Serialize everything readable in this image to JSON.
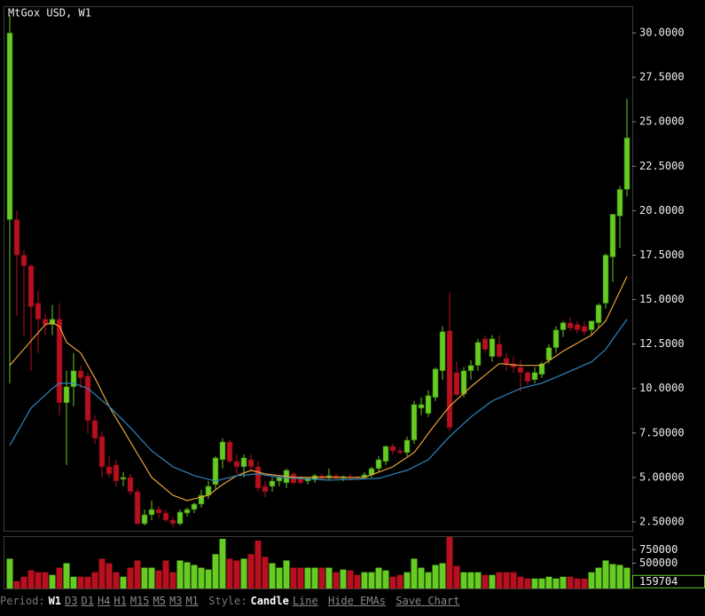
{
  "chart_data": {
    "type": "candlestick",
    "title": "MtGox USD, W1",
    "open": [
      19.5,
      19.5,
      17.5,
      16.9,
      14.8,
      13.9,
      13.6,
      13.9,
      9.2,
      10.1,
      11,
      10.7,
      8.2,
      7.3,
      5.6,
      5.7,
      4.9,
      5.0,
      4.2,
      2.4,
      2.9,
      3.2,
      3.0,
      2.6,
      2.4,
      3.0,
      3.2,
      3.5,
      4.0,
      4.6,
      6.0,
      7.0,
      5.9,
      5.6,
      6.0,
      5.6,
      4.5,
      4.5,
      4.8,
      4.7,
      5.2,
      4.9,
      4.8,
      4.9,
      5.1,
      5.0,
      5.1,
      4.95,
      5.0,
      5.0,
      5.0,
      5.15,
      5.5,
      5.9,
      6.75,
      6.5,
      6.4,
      7.1,
      8.9,
      8.6,
      9.5,
      11.0,
      13.25,
      10.9,
      9.7,
      11.0,
      11.3,
      12.8,
      11.8,
      12.5,
      11.7,
      11.4,
      11.2,
      10.9,
      10.5,
      10.8,
      11.6,
      12.3,
      13.3,
      13.7,
      13.6,
      13.5,
      13.3,
      13.7,
      14.8,
      17.4,
      19.7,
      21.2
    ],
    "high": [
      31,
      20,
      17.8,
      17,
      15.5,
      14.2,
      14.7,
      14.8,
      11,
      12,
      11.3,
      10.9,
      8.5,
      7.6,
      6.2,
      6,
      5.3,
      5.2,
      4.4,
      3.2,
      3.7,
      3.4,
      3.2,
      2.8,
      3.2,
      3.3,
      3.6,
      4.3,
      4.8,
      6.2,
      7.2,
      7.1,
      6.3,
      6.3,
      6.3,
      5.9,
      4.8,
      5.0,
      5.1,
      5.5,
      5.3,
      5.1,
      5.0,
      5.2,
      5.2,
      5.5,
      5.2,
      5.1,
      5.2,
      5.1,
      5.3,
      5.6,
      6.2,
      6.8,
      6.9,
      6.7,
      7.3,
      9.3,
      9.5,
      9.9,
      11.2,
      13.5,
      15.4,
      11.5,
      11.2,
      11.6,
      12.8,
      13.0,
      13.0,
      13.0,
      12.0,
      11.8,
      11.6,
      11.0,
      11.2,
      11.5,
      12.5,
      13.5,
      13.8,
      14.0,
      13.8,
      13.8,
      13.8,
      14.8,
      17.6,
      19.8,
      21.4,
      26.3
    ],
    "low": [
      10.3,
      14.1,
      13,
      11,
      12,
      13,
      13,
      8.5,
      5.7,
      9,
      10,
      7.5,
      6.9,
      5,
      5.0,
      4.5,
      4.5,
      4.0,
      2.3,
      2.3,
      2.6,
      2.7,
      2.5,
      2.2,
      2.3,
      2.8,
      3.0,
      3.3,
      3.8,
      4.3,
      5.5,
      5.8,
      5.2,
      5.0,
      5.3,
      4.2,
      3.9,
      4.2,
      4.5,
      4.4,
      4.6,
      4.6,
      4.6,
      4.7,
      4.9,
      4.9,
      4.9,
      4.8,
      4.8,
      4.9,
      4.9,
      5.0,
      5.3,
      5.7,
      6.3,
      6.3,
      6.2,
      6.9,
      8.5,
      8.4,
      9.3,
      10.5,
      7.6,
      9.6,
      9.5,
      10.5,
      11.0,
      12.0,
      11.5,
      11.7,
      11.0,
      10.9,
      9.8,
      10.2,
      10.3,
      10.6,
      11.4,
      12.0,
      12.9,
      13.2,
      13.1,
      13.0,
      13.0,
      13.4,
      14.5,
      16.0,
      17.9,
      20.8
    ],
    "close": [
      30,
      17.5,
      16.9,
      14.6,
      13.9,
      13.6,
      13.9,
      9.2,
      10.1,
      11,
      10.6,
      8.2,
      7.2,
      5.6,
      5.2,
      4.8,
      5.0,
      4.2,
      2.4,
      2.9,
      3.2,
      3.0,
      2.6,
      2.4,
      3.05,
      3.2,
      3.5,
      4.0,
      4.5,
      6.1,
      7.0,
      5.9,
      5.6,
      6.1,
      5.6,
      4.4,
      4.2,
      4.8,
      5.0,
      5.4,
      4.7,
      4.7,
      4.95,
      5.1,
      4.95,
      5.1,
      4.95,
      5.05,
      4.95,
      4.95,
      5.15,
      5.5,
      6.0,
      6.75,
      6.5,
      6.4,
      7.1,
      9.1,
      9.1,
      9.6,
      11.1,
      13.2,
      7.8,
      9.65,
      11.0,
      11.3,
      12.6,
      12.2,
      12.8,
      11.8,
      11.4,
      11.2,
      10.9,
      10.4,
      10.9,
      11.4,
      12.3,
      13.3,
      13.7,
      13.4,
      13.3,
      13.2,
      13.8,
      14.7,
      17.5,
      19.8,
      21.2,
      24.1
    ],
    "volume": [
      583000,
      167000,
      250000,
      367000,
      333000,
      333000,
      283000,
      417000,
      500000,
      250000,
      250000,
      250000,
      333000,
      583000,
      500000,
      333000,
      250000,
      417000,
      550000,
      417000,
      417000,
      367000,
      550000,
      333000,
      550000,
      517000,
      467000,
      417000,
      383000,
      667000,
      950000,
      583000,
      550000,
      583000,
      667000,
      917000,
      617000,
      500000,
      417000,
      550000,
      417000,
      417000,
      417000,
      417000,
      417000,
      417000,
      333000,
      383000,
      367000,
      283000,
      333000,
      333000,
      417000,
      367000,
      250000,
      283000,
      333000,
      583000,
      417000,
      333000,
      467000,
      500000,
      983000,
      450000,
      333000,
      333000,
      333000,
      283000,
      283000,
      333000,
      333000,
      333000,
      250000,
      217000,
      217000,
      217000,
      250000,
      217000,
      250000,
      250000,
      217000,
      217000,
      333000,
      417000,
      550000,
      483000,
      467000,
      417000
    ],
    "last_volume": 159704,
    "up_color": "#66cc22",
    "down_color": "#b8101f",
    "series": [
      {
        "color": "#e8a23a",
        "values": [
          11.3,
          11.76,
          12.22,
          12.68,
          13.14,
          13.6,
          13.7,
          13.5,
          12.6,
          12.3,
          12.0,
          11.3,
          10.6,
          9.8,
          9.0,
          8.33,
          7.67,
          7.0,
          6.33,
          5.67,
          5.0,
          4.67,
          4.33,
          4.0,
          3.85,
          3.7,
          3.8,
          3.9,
          4.0,
          4.3,
          4.6,
          4.85,
          5.1,
          5.25,
          5.4,
          5.3,
          5.2,
          5.15,
          5.1,
          5.05,
          5.0,
          5.0,
          5.0,
          5.0,
          5.0,
          5.0,
          5.0,
          5.0,
          5.0,
          5.0,
          5.0,
          5.15,
          5.3,
          5.45,
          5.6,
          5.87,
          6.13,
          6.4,
          6.93,
          7.47,
          8.0,
          8.5,
          9.0,
          9.37,
          9.73,
          10.1,
          10.43,
          10.75,
          11.08,
          11.4,
          11.37,
          11.33,
          11.3,
          11.3,
          11.3,
          11.3,
          11.57,
          11.83,
          12.1,
          12.33,
          12.55,
          12.78,
          13.0,
          13.4,
          13.8,
          14.63,
          15.47,
          16.3
        ]
      },
      {
        "color": "#2f86c0",
        "values": [
          6.8,
          7.5,
          8.2,
          8.9,
          9.27,
          9.63,
          10.0,
          10.3,
          10.3,
          10.3,
          10.15,
          10.0,
          9.67,
          9.33,
          9.0,
          8.6,
          8.2,
          7.8,
          7.37,
          6.93,
          6.5,
          6.2,
          5.9,
          5.6,
          5.43,
          5.27,
          5.1,
          5.0,
          4.9,
          4.8,
          4.9,
          5.0,
          5.1,
          5.13,
          5.17,
          5.2,
          5.13,
          5.07,
          5.0,
          4.98,
          4.96,
          4.94,
          4.91,
          4.89,
          4.87,
          4.85,
          4.86,
          4.88,
          4.89,
          4.9,
          4.92,
          4.93,
          4.95,
          5.06,
          5.18,
          5.29,
          5.4,
          5.6,
          5.8,
          6.0,
          6.43,
          6.87,
          7.3,
          7.67,
          8.03,
          8.4,
          8.7,
          9.0,
          9.3,
          9.48,
          9.65,
          9.83,
          10.0,
          10.1,
          10.2,
          10.3,
          10.47,
          10.63,
          10.8,
          10.98,
          11.15,
          11.33,
          11.5,
          11.85,
          12.2,
          12.77,
          13.33,
          13.9
        ]
      }
    ],
    "ylim": [
      2.0,
      31.5
    ],
    "yticks": [
      {
        "value": 30,
        "label": "30.0000"
      },
      {
        "value": 27.5,
        "label": "27.5000"
      },
      {
        "value": 25,
        "label": "25.0000"
      },
      {
        "value": 22.5,
        "label": "22.5000"
      },
      {
        "value": 20,
        "label": "20.0000"
      },
      {
        "value": 17.5,
        "label": "17.5000"
      },
      {
        "value": 15,
        "label": "15.0000"
      },
      {
        "value": 12.5,
        "label": "12.5000"
      },
      {
        "value": 10,
        "label": "10.0000"
      },
      {
        "value": 7.5,
        "label": "7.50000"
      },
      {
        "value": 5,
        "label": "5.00000"
      },
      {
        "value": 2.5,
        "label": "2.50000"
      }
    ],
    "y2lim": [
      0,
      1000000
    ],
    "y2ticks": [
      750000,
      500000
    ]
  },
  "toolbar": {
    "period_label": "Period:",
    "periods": [
      "W1",
      "D3",
      "D1",
      "H4",
      "H1",
      "M15",
      "M5",
      "M3",
      "M1"
    ],
    "style_label": "Style:",
    "styles": [
      "Candle",
      "Line"
    ],
    "hide_emas": "Hide EMAs",
    "save_chart": "Save Chart"
  }
}
